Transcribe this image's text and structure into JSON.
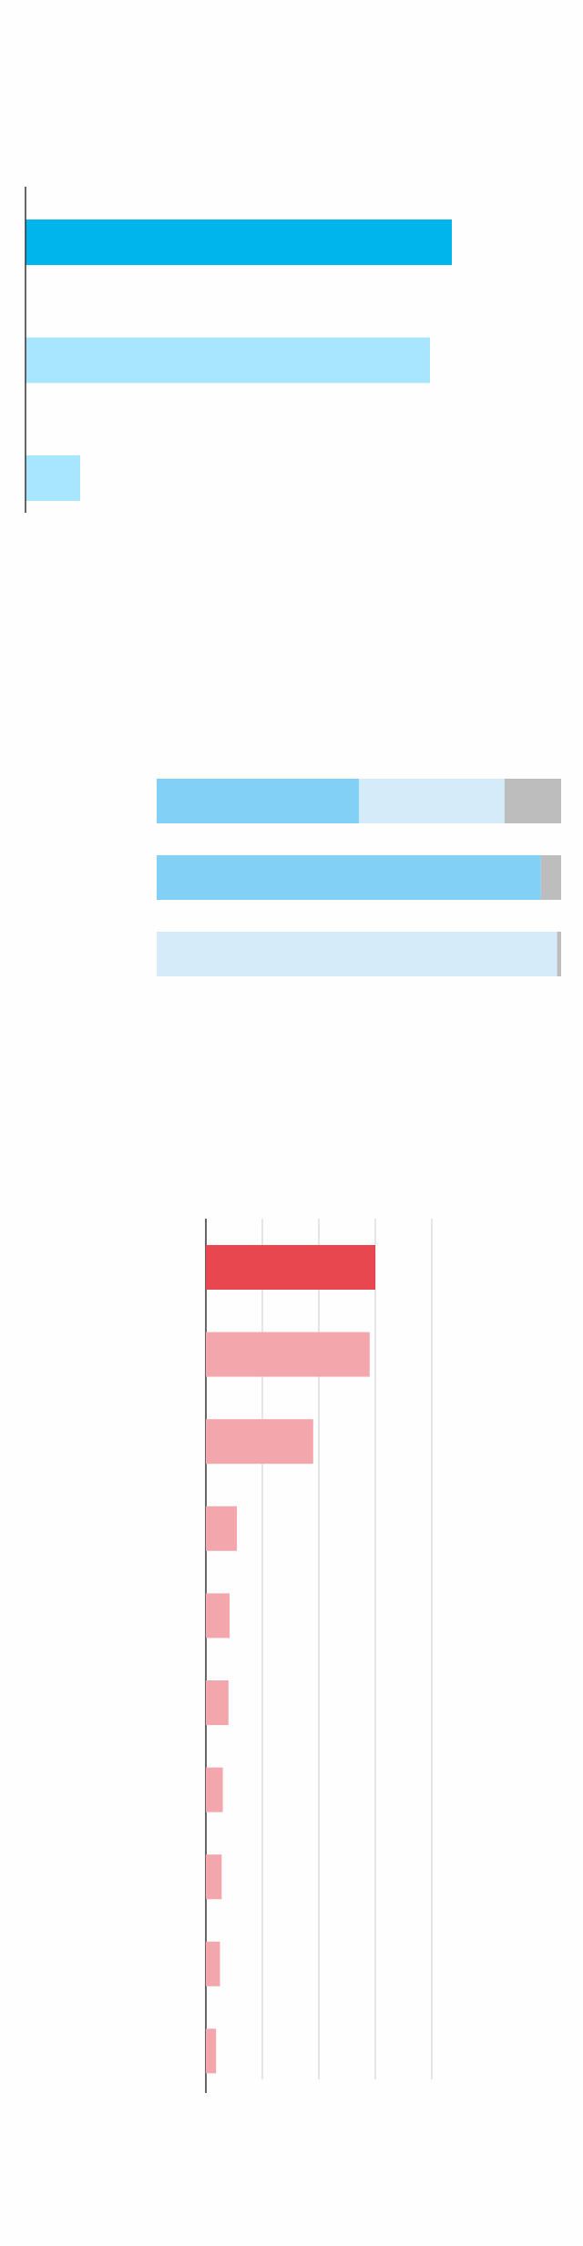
{
  "chart_data": [
    {
      "type": "bar",
      "orientation": "horizontal",
      "values": [
        78,
        74,
        10
      ],
      "colors": [
        "#00b4ec",
        "#a8e6ff",
        "#a8e6ff"
      ],
      "xlim": [
        0,
        100
      ]
    },
    {
      "type": "stacked_bar",
      "orientation": "horizontal",
      "xlim": [
        0,
        100
      ],
      "series": [
        {
          "color": "#82d0f5",
          "values": [
            50,
            95,
            0
          ]
        },
        {
          "color": "#d5ebfa",
          "values": [
            36,
            0,
            99
          ]
        },
        {
          "color": "#bdbdbd",
          "values": [
            14,
            5,
            1
          ]
        }
      ]
    },
    {
      "type": "bar",
      "orientation": "horizontal",
      "values": [
        3.0,
        2.9,
        1.9,
        0.55,
        0.42,
        0.4,
        0.3,
        0.28,
        0.25,
        0.18
      ],
      "colors": [
        "#e8434d",
        "#f4a6ad",
        "#f4a6ad",
        "#f4a6ad",
        "#f4a6ad",
        "#f4a6ad",
        "#f4a6ad",
        "#f4a6ad",
        "#f4a6ad",
        "#f4a6ad"
      ],
      "xlim": [
        0,
        5
      ],
      "xticks": [
        0,
        1,
        2,
        3,
        4
      ],
      "grid": true
    }
  ]
}
